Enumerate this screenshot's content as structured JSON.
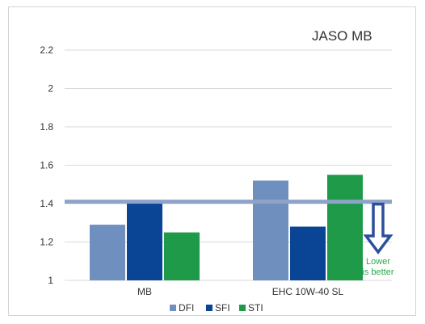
{
  "chart_data": {
    "type": "bar",
    "title": "JASO MB",
    "xlabel": "",
    "ylabel": "",
    "categories": [
      "MB",
      "EHC 10W-40 SL"
    ],
    "series": [
      {
        "name": "DFI",
        "values": [
          1.29,
          1.52
        ],
        "color": "#6f8fbe"
      },
      {
        "name": "SFI",
        "values": [
          1.4,
          1.28
        ],
        "color": "#0a4595"
      },
      {
        "name": "STI",
        "values": [
          1.25,
          1.55
        ],
        "color": "#1f9a49"
      }
    ],
    "ylim": [
      1,
      2.2
    ],
    "yticks": [
      "1",
      "1.2",
      "1.4",
      "1.6",
      "1.8",
      "2",
      "2.2"
    ],
    "threshold": {
      "value": 1.41,
      "color": "#8ea3c8"
    },
    "annotation": {
      "lines": [
        "Lower",
        "is better"
      ],
      "color": "#2aa84a",
      "arrow_color": "#2b4f9e"
    },
    "grid": true,
    "legend": "bottom"
  }
}
